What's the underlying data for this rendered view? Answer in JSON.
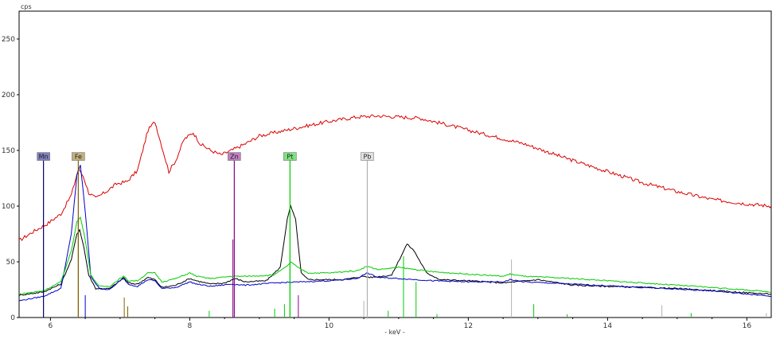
{
  "chart_data": {
    "type": "line",
    "ylabel_unit": "cps",
    "xlabel": "- keV -",
    "xlim": [
      5.55,
      16.35
    ],
    "ylim": [
      0,
      275
    ],
    "x_ticks": [
      6,
      8,
      10,
      12,
      14,
      16
    ],
    "y_ticks": [
      0,
      50,
      100,
      150,
      200,
      250
    ],
    "grid": false,
    "series": [
      {
        "color": "#dd0000",
        "points": [
          [
            5.55,
            69
          ],
          [
            5.75,
            77
          ],
          [
            5.95,
            84
          ],
          [
            6.15,
            93
          ],
          [
            6.3,
            110
          ],
          [
            6.4,
            133
          ],
          [
            6.47,
            127
          ],
          [
            6.55,
            112
          ],
          [
            6.65,
            107
          ],
          [
            6.8,
            113
          ],
          [
            6.95,
            120
          ],
          [
            7.1,
            122
          ],
          [
            7.25,
            132
          ],
          [
            7.4,
            168
          ],
          [
            7.5,
            176
          ],
          [
            7.58,
            158
          ],
          [
            7.7,
            131
          ],
          [
            7.8,
            141
          ],
          [
            7.92,
            160
          ],
          [
            8.05,
            166
          ],
          [
            8.15,
            156
          ],
          [
            8.3,
            150
          ],
          [
            8.45,
            146
          ],
          [
            8.6,
            150
          ],
          [
            8.8,
            156
          ],
          [
            9.0,
            163
          ],
          [
            9.3,
            167
          ],
          [
            9.6,
            171
          ],
          [
            10.0,
            176
          ],
          [
            10.4,
            180
          ],
          [
            10.7,
            181
          ],
          [
            11.0,
            180
          ],
          [
            11.3,
            179
          ],
          [
            11.7,
            173
          ],
          [
            12.2,
            165
          ],
          [
            12.8,
            156
          ],
          [
            13.4,
            143
          ],
          [
            14.0,
            131
          ],
          [
            14.5,
            121
          ],
          [
            15.0,
            113
          ],
          [
            15.5,
            106
          ],
          [
            16.0,
            102
          ],
          [
            16.35,
            100
          ]
        ]
      },
      {
        "color": "#000000",
        "points": [
          [
            5.55,
            20
          ],
          [
            5.9,
            23
          ],
          [
            6.15,
            30
          ],
          [
            6.3,
            52
          ],
          [
            6.38,
            75
          ],
          [
            6.42,
            79
          ],
          [
            6.48,
            63
          ],
          [
            6.55,
            38
          ],
          [
            6.65,
            26
          ],
          [
            6.85,
            26
          ],
          [
            7.0,
            33
          ],
          [
            7.05,
            36
          ],
          [
            7.12,
            31
          ],
          [
            7.25,
            30
          ],
          [
            7.4,
            36
          ],
          [
            7.5,
            34
          ],
          [
            7.6,
            27
          ],
          [
            7.8,
            29
          ],
          [
            8.0,
            35
          ],
          [
            8.1,
            33
          ],
          [
            8.3,
            30
          ],
          [
            8.5,
            31
          ],
          [
            8.65,
            35
          ],
          [
            8.8,
            32
          ],
          [
            9.1,
            33
          ],
          [
            9.3,
            45
          ],
          [
            9.4,
            88
          ],
          [
            9.45,
            100
          ],
          [
            9.52,
            88
          ],
          [
            9.6,
            40
          ],
          [
            9.7,
            34
          ],
          [
            10.2,
            34
          ],
          [
            10.5,
            37
          ],
          [
            10.6,
            36
          ],
          [
            10.9,
            38
          ],
          [
            11.05,
            57
          ],
          [
            11.12,
            66
          ],
          [
            11.22,
            60
          ],
          [
            11.4,
            40
          ],
          [
            11.6,
            34
          ],
          [
            12.0,
            33
          ],
          [
            12.5,
            31
          ],
          [
            13.0,
            34
          ],
          [
            13.5,
            29
          ],
          [
            14.0,
            28
          ],
          [
            15.0,
            26
          ],
          [
            16.35,
            21
          ]
        ]
      },
      {
        "color": "#0000cc",
        "points": [
          [
            5.55,
            15
          ],
          [
            5.9,
            19
          ],
          [
            6.15,
            26
          ],
          [
            6.3,
            75
          ],
          [
            6.38,
            128
          ],
          [
            6.43,
            137
          ],
          [
            6.5,
            95
          ],
          [
            6.58,
            37
          ],
          [
            6.7,
            26
          ],
          [
            6.85,
            25
          ],
          [
            7.0,
            33
          ],
          [
            7.05,
            35
          ],
          [
            7.12,
            30
          ],
          [
            7.25,
            28
          ],
          [
            7.4,
            34
          ],
          [
            7.5,
            33
          ],
          [
            7.6,
            26
          ],
          [
            7.8,
            27
          ],
          [
            8.0,
            32
          ],
          [
            8.1,
            30
          ],
          [
            8.3,
            28
          ],
          [
            8.6,
            30
          ],
          [
            8.8,
            29
          ],
          [
            9.2,
            31
          ],
          [
            9.6,
            32
          ],
          [
            10.0,
            33
          ],
          [
            10.4,
            35
          ],
          [
            10.55,
            40
          ],
          [
            10.7,
            36
          ],
          [
            11.0,
            35
          ],
          [
            11.5,
            33
          ],
          [
            12.0,
            32
          ],
          [
            12.5,
            32
          ],
          [
            12.6,
            34
          ],
          [
            12.8,
            32
          ],
          [
            13.5,
            30
          ],
          [
            14.5,
            27
          ],
          [
            15.5,
            24
          ],
          [
            16.35,
            19
          ]
        ]
      },
      {
        "color": "#00cc00",
        "points": [
          [
            5.55,
            21
          ],
          [
            5.9,
            24
          ],
          [
            6.15,
            32
          ],
          [
            6.3,
            60
          ],
          [
            6.38,
            86
          ],
          [
            6.43,
            90
          ],
          [
            6.5,
            70
          ],
          [
            6.58,
            38
          ],
          [
            6.7,
            28
          ],
          [
            6.85,
            28
          ],
          [
            7.0,
            35
          ],
          [
            7.05,
            37
          ],
          [
            7.12,
            33
          ],
          [
            7.25,
            33
          ],
          [
            7.4,
            40
          ],
          [
            7.5,
            40
          ],
          [
            7.6,
            32
          ],
          [
            7.8,
            35
          ],
          [
            8.0,
            40
          ],
          [
            8.1,
            37
          ],
          [
            8.3,
            35
          ],
          [
            8.6,
            37
          ],
          [
            8.8,
            37
          ],
          [
            9.2,
            38
          ],
          [
            9.4,
            46
          ],
          [
            9.45,
            50
          ],
          [
            9.55,
            45
          ],
          [
            9.7,
            40
          ],
          [
            10.0,
            40
          ],
          [
            10.4,
            42
          ],
          [
            10.55,
            46
          ],
          [
            10.7,
            43
          ],
          [
            11.0,
            45
          ],
          [
            11.5,
            41
          ],
          [
            12.0,
            39
          ],
          [
            12.5,
            37
          ],
          [
            12.6,
            39
          ],
          [
            12.8,
            37
          ],
          [
            13.5,
            35
          ],
          [
            14.5,
            31
          ],
          [
            15.5,
            27
          ],
          [
            16.35,
            23
          ]
        ]
      }
    ],
    "element_markers": [
      {
        "label": "Mn",
        "energy": 5.9,
        "line_height": 141,
        "line_color": "#000066",
        "label_bg": "#8080c0"
      },
      {
        "label": "Fe",
        "energy": 6.4,
        "line_height": 141,
        "line_color": "#806000",
        "label_bg": "#c0b080"
      },
      {
        "label": "Zn",
        "energy": 8.64,
        "line_height": 141,
        "line_color": "#880088",
        "label_bg": "#c080c0"
      },
      {
        "label": "Pt",
        "energy": 9.44,
        "line_height": 141,
        "line_color": "#00cc00",
        "label_bg": "#80e080"
      },
      {
        "label": "Pb",
        "energy": 10.55,
        "line_height": 141,
        "line_color": "#b0b0b0",
        "label_bg": "#e0e0e0"
      }
    ],
    "line_markers": [
      {
        "energy": 6.4,
        "height": 90,
        "color": "#806000"
      },
      {
        "energy": 6.5,
        "height": 20,
        "color": "#0000cc"
      },
      {
        "energy": 7.06,
        "height": 18,
        "color": "#806000"
      },
      {
        "energy": 7.11,
        "height": 10,
        "color": "#806000"
      },
      {
        "energy": 8.28,
        "height": 6,
        "color": "#00cc00"
      },
      {
        "energy": 8.62,
        "height": 70,
        "color": "#880088"
      },
      {
        "energy": 9.22,
        "height": 8,
        "color": "#00cc00"
      },
      {
        "energy": 9.36,
        "height": 12,
        "color": "#00cc00"
      },
      {
        "energy": 9.44,
        "height": 60,
        "color": "#00cc00"
      },
      {
        "energy": 9.56,
        "height": 20,
        "color": "#880088"
      },
      {
        "energy": 10.5,
        "height": 15,
        "color": "#b0b0b0"
      },
      {
        "energy": 10.85,
        "height": 6,
        "color": "#00cc00"
      },
      {
        "energy": 11.07,
        "height": 55,
        "color": "#00cc00"
      },
      {
        "energy": 11.25,
        "height": 32,
        "color": "#00cc00"
      },
      {
        "energy": 11.55,
        "height": 3,
        "color": "#00cc00"
      },
      {
        "energy": 12.62,
        "height": 52,
        "color": "#b0b0b0"
      },
      {
        "energy": 12.94,
        "height": 12,
        "color": "#00cc00"
      },
      {
        "energy": 13.42,
        "height": 3,
        "color": "#00cc00"
      },
      {
        "energy": 14.78,
        "height": 11,
        "color": "#b0b0b0"
      },
      {
        "energy": 15.2,
        "height": 4,
        "color": "#00cc00"
      },
      {
        "energy": 16.28,
        "height": 4,
        "color": "#b0b0b0"
      }
    ]
  }
}
